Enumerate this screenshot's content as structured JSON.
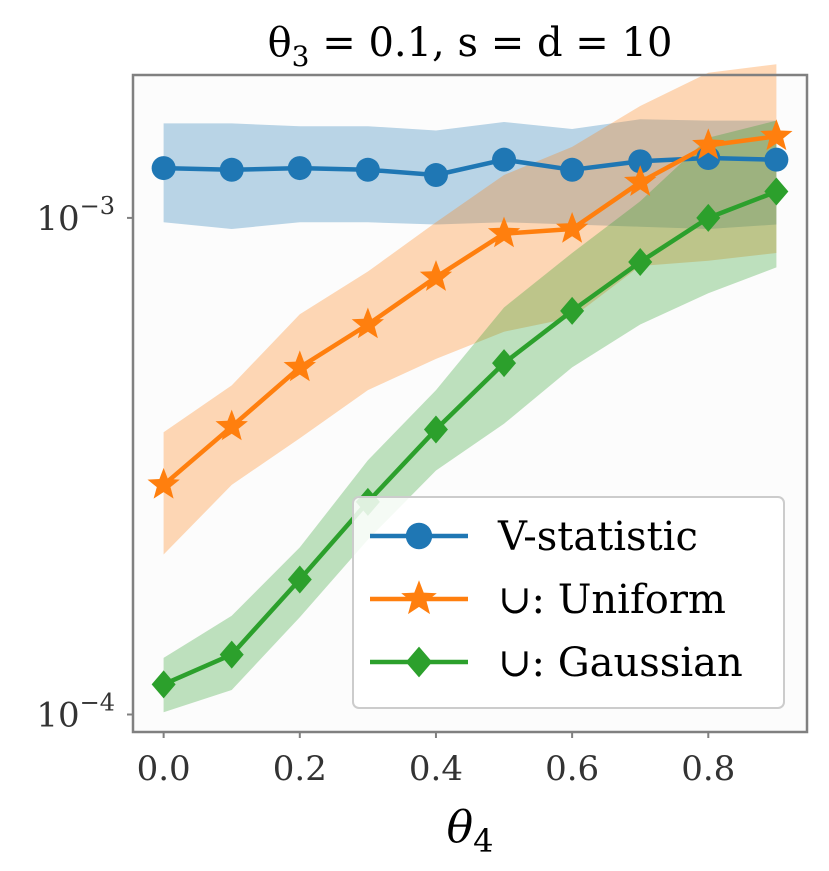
{
  "chart_data": {
    "type": "line",
    "title": "θ₃ = 0.1, s = d = 10",
    "title_parts": {
      "sym": "θ",
      "sub": "3",
      "rest": " = 0.1, s = d = 10"
    },
    "xlabel": "θ₄",
    "xlabel_parts": {
      "sym": "θ",
      "sub": "4"
    },
    "ylabel": "",
    "yscale": "log",
    "xlim": [
      -0.045,
      0.945
    ],
    "ylim": [
      9.22e-05,
      0.00194
    ],
    "xticks": [
      0.0,
      0.2,
      0.4,
      0.6,
      0.8
    ],
    "xtick_labels": [
      "0.0",
      "0.2",
      "0.4",
      "0.6",
      "0.8"
    ],
    "yticks": [
      0.001,
      0.0001
    ],
    "ytick_labels": [
      {
        "base": "10",
        "exp": "−3"
      },
      {
        "base": "10",
        "exp": "−4"
      }
    ],
    "x": [
      0.0,
      0.1,
      0.2,
      0.3,
      0.4,
      0.5,
      0.6,
      0.7,
      0.8,
      0.9
    ],
    "series": [
      {
        "name": "V-statistic",
        "color": "#1f77b4",
        "marker": "circle",
        "values": [
          0.00126,
          0.00125,
          0.00126,
          0.00125,
          0.00122,
          0.00131,
          0.00125,
          0.0013,
          0.00132,
          0.00131
        ],
        "lower": [
          0.00098,
          0.00095,
          0.00098,
          0.00098,
          0.00097,
          0.00098,
          0.00097,
          0.00096,
          0.00095,
          0.00097
        ],
        "upper": [
          0.00155,
          0.00155,
          0.00153,
          0.00153,
          0.0015,
          0.00156,
          0.00151,
          0.00158,
          0.00157,
          0.00157
        ]
      },
      {
        "name": "∪: Uniform",
        "legend_symbol": "∪",
        "legend_text": ": Uniform",
        "color": "#ff7f0e",
        "marker": "star",
        "values": [
          0.00029,
          0.00038,
          0.0005,
          0.00061,
          0.00076,
          0.00093,
          0.00095,
          0.00118,
          0.0014,
          0.00146
        ],
        "lower": [
          0.00021,
          0.00029,
          0.00036,
          0.00045,
          0.00052,
          0.00059,
          0.00063,
          0.0008,
          0.00082,
          0.00085
        ],
        "upper": [
          0.00037,
          0.00046,
          0.00064,
          0.00078,
          0.00098,
          0.00122,
          0.00139,
          0.00168,
          0.00196,
          0.00204
        ]
      },
      {
        "name": "∪: Gaussian",
        "legend_symbol": "∪",
        "legend_text": ": Gaussian",
        "color": "#2ca02c",
        "marker": "diamond",
        "values": [
          0.000115,
          0.000132,
          0.000187,
          0.000268,
          0.000375,
          0.00051,
          0.00065,
          0.000815,
          0.001,
          0.00113
        ],
        "lower": [
          0.000101,
          0.000112,
          0.000157,
          0.000225,
          0.00031,
          0.000385,
          0.0005,
          0.00061,
          0.000705,
          0.000795
        ],
        "upper": [
          0.00013,
          0.000158,
          0.000217,
          0.000325,
          0.00045,
          0.00066,
          0.00085,
          0.00108,
          0.00145,
          0.00157
        ]
      }
    ],
    "legend_location": "lower-right"
  }
}
